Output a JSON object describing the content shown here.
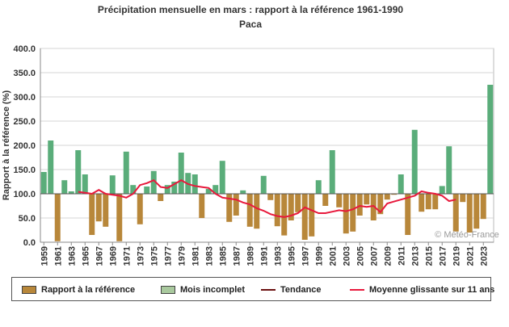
{
  "chart_data": {
    "type": "bar",
    "title": "Précipitation mensuelle en mars : rapport à la référence 1961-1990",
    "subtitle": "Paca",
    "ylabel": "Rapport à la référence (%)",
    "ylim": [
      0,
      400
    ],
    "yticks": [
      "0.0",
      "50.0",
      "100.0",
      "150.0",
      "200.0",
      "250.0",
      "300.0",
      "350.0",
      "400.0"
    ],
    "baseline": 100,
    "xlabels": [
      "1959",
      "1961",
      "1963",
      "1965",
      "1967",
      "1969",
      "1971",
      "1973",
      "1975",
      "1977",
      "1979",
      "1981",
      "1983",
      "1985",
      "1987",
      "1989",
      "1991",
      "1993",
      "1995",
      "1997",
      "1999",
      "2001",
      "2003",
      "2005",
      "2007",
      "2009",
      "2011",
      "2013",
      "2015",
      "2017",
      "2019",
      "2021",
      "2023"
    ],
    "years": [
      1959,
      1960,
      1961,
      1962,
      1963,
      1964,
      1965,
      1966,
      1967,
      1968,
      1969,
      1970,
      1971,
      1972,
      1973,
      1974,
      1975,
      1976,
      1977,
      1978,
      1979,
      1980,
      1981,
      1982,
      1983,
      1984,
      1985,
      1986,
      1987,
      1988,
      1989,
      1990,
      1991,
      1992,
      1993,
      1994,
      1995,
      1996,
      1997,
      1998,
      1999,
      2000,
      2001,
      2002,
      2003,
      2004,
      2005,
      2006,
      2007,
      2008,
      2009,
      2010,
      2011,
      2012,
      2013,
      2014,
      2015,
      2016,
      2017,
      2018,
      2019,
      2020,
      2021,
      2022,
      2023,
      2024
    ],
    "values": [
      145,
      210,
      2,
      128,
      105,
      190,
      140,
      15,
      43,
      32,
      138,
      2,
      187,
      118,
      37,
      115,
      147,
      85,
      118,
      125,
      185,
      143,
      140,
      50,
      110,
      118,
      168,
      42,
      55,
      107,
      32,
      28,
      137,
      87,
      33,
      14,
      45,
      62,
      5,
      12,
      128,
      75,
      190,
      72,
      18,
      22,
      55,
      78,
      45,
      58,
      88,
      98,
      140,
      15,
      232,
      63,
      68,
      68,
      116,
      198,
      22,
      83,
      20,
      28,
      48,
      325
    ],
    "series": [
      {
        "name": "Rapport à la référence",
        "color": "#b8873a"
      },
      {
        "name": "Mois incomplet",
        "color": "#a9c99e"
      },
      {
        "name": "Tendance",
        "color": "#6b1010"
      },
      {
        "name": "Moyenne glissante sur 11 ans",
        "color": "#e8193c",
        "x": [
          1964,
          1965,
          1966,
          1967,
          1968,
          1969,
          1970,
          1971,
          1972,
          1973,
          1974,
          1975,
          1976,
          1977,
          1978,
          1979,
          1980,
          1981,
          1982,
          1983,
          1984,
          1985,
          1986,
          1987,
          1988,
          1989,
          1990,
          1991,
          1992,
          1993,
          1994,
          1995,
          1996,
          1997,
          1998,
          1999,
          2000,
          2001,
          2002,
          2003,
          2004,
          2005,
          2006,
          2007,
          2008,
          2009,
          2010,
          2011,
          2012,
          2013,
          2014,
          2015,
          2016,
          2017,
          2018,
          2019
        ],
        "values": [
          104,
          102,
          100,
          108,
          100,
          98,
          96,
          92,
          100,
          118,
          122,
          128,
          114,
          112,
          120,
          128,
          120,
          116,
          114,
          112,
          100,
          92,
          90,
          88,
          82,
          78,
          70,
          65,
          58,
          54,
          52,
          55,
          60,
          72,
          66,
          60,
          60,
          63,
          66,
          64,
          68,
          75,
          73,
          75,
          62,
          80,
          84,
          88,
          92,
          96,
          105,
          102,
          100,
          96,
          85,
          88
        ]
      }
    ],
    "bar_colors": {
      "above": "#5aad7a",
      "below": "#b8873a",
      "outline": "#6b5020"
    },
    "watermark": "© Météo-France",
    "grid": true,
    "legend_position": "bottom"
  }
}
